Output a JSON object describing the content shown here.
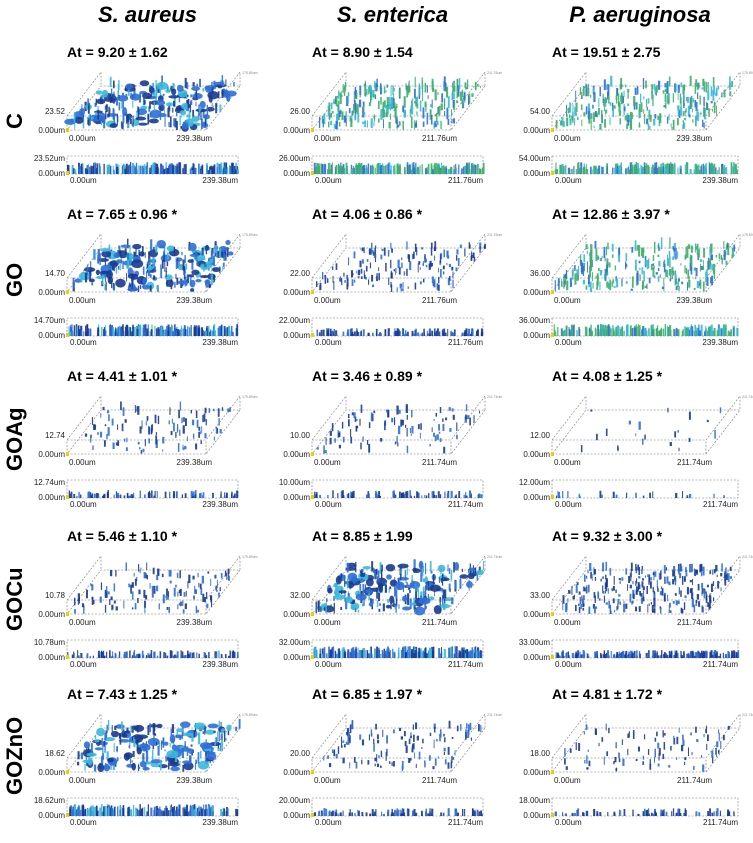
{
  "columns": [
    "S. aureus",
    "S. enterica",
    "P. aeruginosa"
  ],
  "rows": [
    {
      "label": "C",
      "cells": [
        {
          "at": "At = 9.20 ± 1.62",
          "z3d": "23.52",
          "zside": "23.52um",
          "x0": "0.00um",
          "x1": "239.38um",
          "y0": "0.00um",
          "ycorner": "175.89um",
          "dens": 1.0,
          "style": "blob"
        },
        {
          "at": "At = 8.90 ± 1.54",
          "z3d": "26.00",
          "zside": "26.00um",
          "x0": "0.00um",
          "x1": "211.76um",
          "y0": "0.00um",
          "ycorner": "211.76um",
          "dens": 1.0,
          "style": "green"
        },
        {
          "at": "At = 19.51 ± 2.75",
          "z3d": "54.00",
          "zside": "54.00um",
          "x0": "0.00um",
          "x1": "239.38um",
          "y0": "0.00um",
          "ycorner": "175.89um",
          "dens": 1.0,
          "style": "green"
        }
      ]
    },
    {
      "label": "GO",
      "cells": [
        {
          "at": "At = 7.65 ± 0.96 *",
          "z3d": "14.70",
          "zside": "14.70um",
          "x0": "0.00um",
          "x1": "239.38um",
          "y0": "0.00um",
          "ycorner": "175.89um",
          "dens": 1.0,
          "style": "blob"
        },
        {
          "at": "At = 4.06 ± 0.86 *",
          "z3d": "22.00",
          "zside": "22.00um",
          "x0": "0.00um",
          "x1": "211.76um",
          "y0": "0.00um",
          "ycorner": "211.76um",
          "dens": 0.6,
          "style": "sparse"
        },
        {
          "at": "At = 12.86 ± 3.97 *",
          "z3d": "36.00",
          "zside": "36.00um",
          "x0": "0.00um",
          "x1": "239.38um",
          "y0": "0.00um",
          "ycorner": "175.89um",
          "dens": 1.0,
          "style": "green"
        }
      ]
    },
    {
      "label": "GOAg",
      "cells": [
        {
          "at": "At = 4.41 ± 1.01 *",
          "z3d": "12.74",
          "zside": "12.74um",
          "x0": "0.00um",
          "x1": "239.38um",
          "y0": "0.00um",
          "ycorner": "175.89um",
          "dens": 0.4,
          "style": "sparse"
        },
        {
          "at": "At = 3.46 ± 0.89 *",
          "z3d": "10.00",
          "zside": "10.00um",
          "x0": "0.00um",
          "x1": "211.74um",
          "y0": "0.00um",
          "ycorner": "211.74um",
          "dens": 0.35,
          "style": "sparse"
        },
        {
          "at": "At = 4.08 ± 1.25 *",
          "z3d": "12.00",
          "zside": "12.00um",
          "x0": "0.00um",
          "x1": "211.74um",
          "y0": "0.00um",
          "ycorner": "211.74um",
          "dens": 0.08,
          "style": "sparse"
        }
      ]
    },
    {
      "label": "GOCu",
      "cells": [
        {
          "at": "At = 5.46 ± 1.10 *",
          "z3d": "10.78",
          "zside": "10.78um",
          "x0": "0.00um",
          "x1": "239.38um",
          "y0": "0.00um",
          "ycorner": "175.89um",
          "dens": 0.5,
          "style": "sparse"
        },
        {
          "at": "At = 8.85 ± 1.99",
          "z3d": "32.00",
          "zside": "32.00um",
          "x0": "0.00um",
          "x1": "211.74um",
          "y0": "0.00um",
          "ycorner": "211.74um",
          "dens": 1.0,
          "style": "blob"
        },
        {
          "at": "At = 9.32 ± 3.00 *",
          "z3d": "33.00",
          "zside": "33.00um",
          "x0": "0.00um",
          "x1": "211.74um",
          "y0": "0.00um",
          "ycorner": "211.74um",
          "dens": 1.0,
          "style": "sparse"
        }
      ]
    },
    {
      "label": "GOZnO",
      "cells": [
        {
          "at": "At = 7.43 ± 1.25 *",
          "z3d": "18.62",
          "zside": "18.62um",
          "x0": "0.00um",
          "x1": "239.38um",
          "y0": "0.00um",
          "ycorner": "175.89um",
          "dens": 0.9,
          "style": "blob"
        },
        {
          "at": "At = 6.85 ± 1.97 *",
          "z3d": "20.00",
          "zside": "20.00um",
          "x0": "0.00um",
          "x1": "211.74um",
          "y0": "0.00um",
          "ycorner": "211.74um",
          "dens": 0.45,
          "style": "sparse"
        },
        {
          "at": "At = 4.81 ± 1.72 *",
          "z3d": "18.00",
          "zside": "18.00um",
          "x0": "0.00um",
          "x1": "211.74um",
          "y0": "0.00um",
          "ycorner": "211.74um",
          "dens": 0.35,
          "style": "sparse"
        }
      ]
    }
  ],
  "colors": {
    "deep_blue": "#1a3a8f",
    "blue": "#2f6fd6",
    "cyan": "#39b9d8",
    "green": "#3fae6a",
    "axis_yellow": "#e8d000"
  }
}
